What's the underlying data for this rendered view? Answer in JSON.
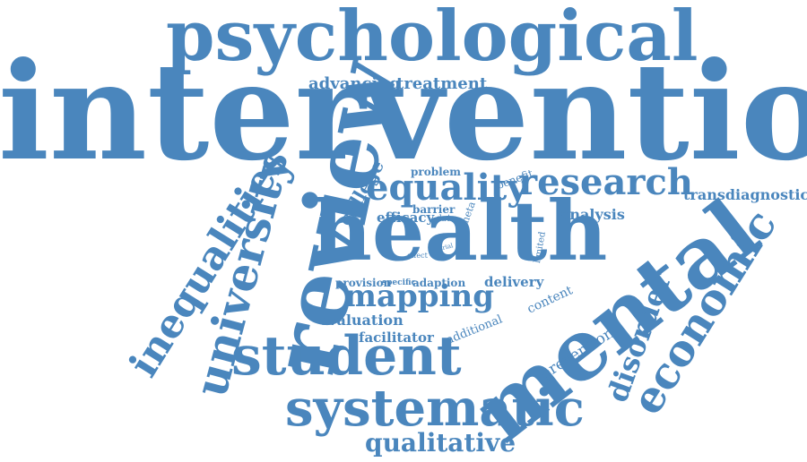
{
  "colors": {
    "text": "#4a86bd",
    "background": "#ffffff"
  },
  "words": [
    "psychological",
    "intervention",
    "advancing",
    "treatment",
    "review",
    "health",
    "mental",
    "equality",
    "research",
    "university",
    "inequalities",
    "student",
    "systematic",
    "economic",
    "qualitative",
    "mapping",
    "college",
    "problem",
    "benefit",
    "transdiagnostic",
    "barrier",
    "efficacy",
    "data",
    "meta",
    "analysis",
    "trial",
    "effect",
    "limited",
    "provision",
    "specific",
    "adaption",
    "delivery",
    "content",
    "evaluation",
    "additional",
    "facilitator",
    "disorder",
    "prevention"
  ]
}
